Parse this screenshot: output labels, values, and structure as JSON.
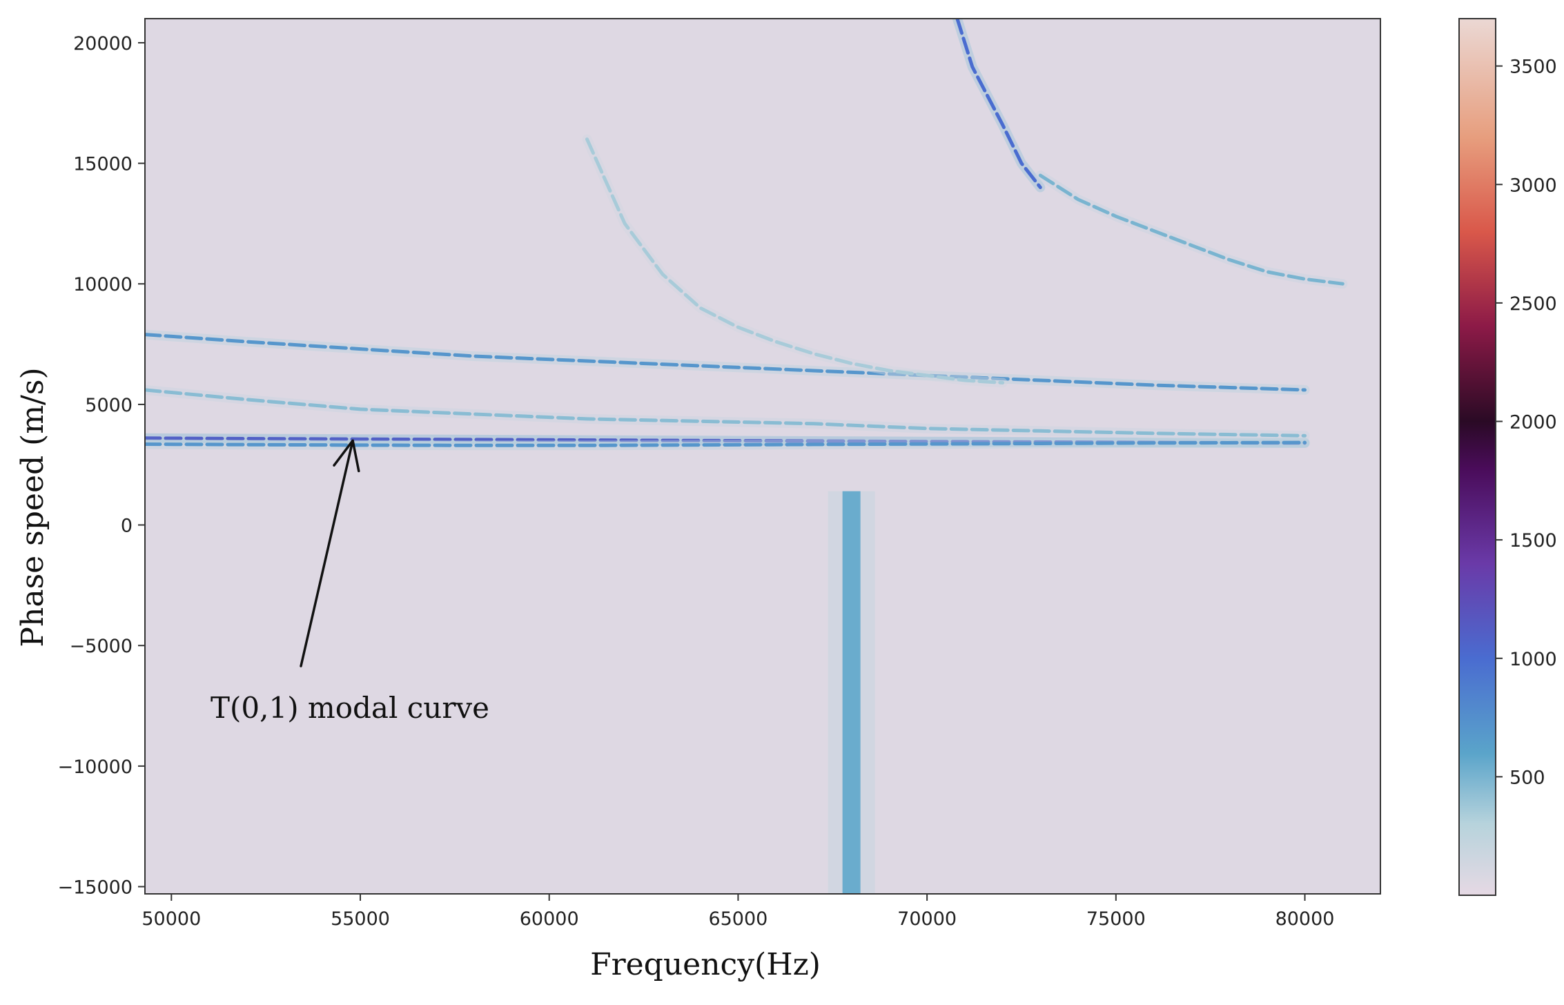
{
  "chart_data": {
    "type": "heatmap",
    "title": "",
    "xlabel": "Frequency(Hz)",
    "ylabel": "Phase speed (m/s)",
    "xlim": [
      49300,
      82000
    ],
    "ylim": [
      -15300,
      21000
    ],
    "x_ticks": [
      50000,
      55000,
      60000,
      65000,
      70000,
      75000,
      80000
    ],
    "y_ticks": [
      -15000,
      -10000,
      -5000,
      0,
      5000,
      10000,
      15000,
      20000
    ],
    "x_tick_labels": [
      "50000",
      "55000",
      "60000",
      "65000",
      "70000",
      "75000",
      "80000"
    ],
    "y_tick_labels": [
      "-15000",
      "-10000",
      "-5000",
      "0",
      "5000",
      "10000",
      "15000",
      "20000"
    ],
    "background_value": 50,
    "colorbar": {
      "range": [
        0,
        3700
      ],
      "ticks": [
        500,
        1000,
        1500,
        2000,
        2500,
        3000,
        3500
      ],
      "tick_labels": [
        "500",
        "1000",
        "1500",
        "2000",
        "2500",
        "3000",
        "3500"
      ],
      "colormap": [
        {
          "v": 0,
          "color": "#e6d9e4"
        },
        {
          "v": 300,
          "color": "#b7d3dc"
        },
        {
          "v": 600,
          "color": "#5aa4ca"
        },
        {
          "v": 1000,
          "color": "#4a6cd0"
        },
        {
          "v": 1400,
          "color": "#6a3aa8"
        },
        {
          "v": 1800,
          "color": "#4a0c5a"
        },
        {
          "v": 2000,
          "color": "#2a0a25"
        },
        {
          "v": 2400,
          "color": "#8c1a47"
        },
        {
          "v": 2800,
          "color": "#d9584a"
        },
        {
          "v": 3200,
          "color": "#e79e7e"
        },
        {
          "v": 3700,
          "color": "#ebd8d4"
        }
      ]
    },
    "series": [
      {
        "x": [
          49300,
          52000,
          55000,
          58000,
          61000,
          64000,
          67000,
          70000,
          73000,
          76000,
          80000
        ],
        "y": [
          3600,
          3580,
          3560,
          3540,
          3520,
          3500,
          3480,
          3460,
          3440,
          3420,
          3400
        ],
        "intensity": 1100
      },
      {
        "x": [
          49300,
          52000,
          55000,
          58000,
          61000,
          64000,
          67000,
          70000,
          73000,
          76000,
          80000
        ],
        "y": [
          3350,
          3330,
          3310,
          3300,
          3300,
          3320,
          3340,
          3360,
          3380,
          3400,
          3420
        ],
        "intensity": 700
      },
      {
        "x": [
          49300,
          52000,
          55000,
          58000,
          61000,
          64000,
          67000,
          70000,
          73000,
          76000,
          80000
        ],
        "y": [
          7900,
          7600,
          7300,
          7000,
          6800,
          6600,
          6400,
          6200,
          6000,
          5800,
          5600
        ],
        "intensity": 700
      },
      {
        "x": [
          49300,
          52000,
          55000,
          58000,
          61000,
          64000,
          67000,
          70000,
          73000,
          76000,
          80000
        ],
        "y": [
          5600,
          5200,
          4800,
          4600,
          4400,
          4300,
          4200,
          4000,
          3900,
          3800,
          3700
        ],
        "intensity": 450
      },
      {
        "x": [
          61000,
          62000,
          63000,
          64000,
          65000,
          66000,
          67000,
          68000,
          69000,
          70000,
          71000,
          72000
        ],
        "y": [
          16000,
          12500,
          10400,
          9000,
          8200,
          7600,
          7100,
          6700,
          6400,
          6200,
          6000,
          5900
        ],
        "intensity": 350
      },
      {
        "x": [
          70800,
          71200,
          71600,
          72000,
          72500,
          73000
        ],
        "y": [
          21000,
          19000,
          17800,
          16600,
          15000,
          14000
        ],
        "intensity": 1000
      },
      {
        "x": [
          73000,
          74000,
          75000,
          76000,
          77000,
          78000,
          79000,
          80000,
          81000
        ],
        "y": [
          14500,
          13500,
          12800,
          12200,
          11600,
          11000,
          10500,
          10200,
          10000
        ],
        "intensity": 500
      },
      {
        "x": [
          68000
        ],
        "y": [
          0
        ],
        "intensity": 550,
        "kind": "vertical_band",
        "y_range": [
          -15300,
          1400
        ]
      }
    ],
    "annotations": [
      {
        "text": "T(0,1) modal curve",
        "arrow_to": {
          "x": 54800,
          "y": 3500
        }
      }
    ]
  }
}
